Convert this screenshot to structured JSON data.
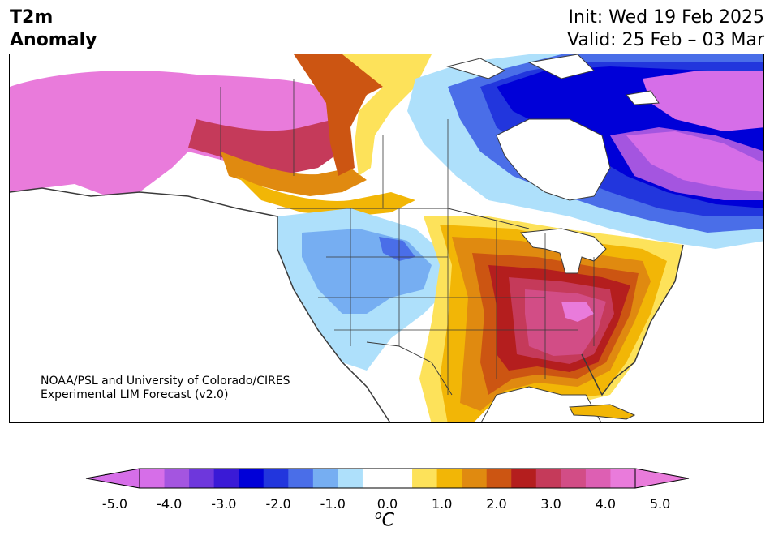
{
  "header": {
    "title_line1": "T2m",
    "title_line2": "Anomaly",
    "init": "Init: Wed 19 Feb 2025",
    "valid": "Valid: 25 Feb – 03 Mar"
  },
  "credit": {
    "line1": "NOAA/PSL and University of Colorado/CIRES",
    "line2": "Experimental LIM Forecast (v2.0)"
  },
  "colorbar": {
    "unit_base": "C",
    "unit_sup": "o",
    "ticks": [
      "-5.0",
      "-4.0",
      "-3.0",
      "-2.0",
      "-1.0",
      "0.0",
      "1.0",
      "2.0",
      "3.0",
      "4.0",
      "5.0"
    ],
    "colors": [
      "#d66ee8",
      "#a455e0",
      "#6e37dc",
      "#3a1ad6",
      "#0000d8",
      "#2236dd",
      "#4a6ee8",
      "#76aef2",
      "#aee0fb",
      "#ffffff",
      "#ffffff",
      "#fde25a",
      "#f2b606",
      "#e08a10",
      "#cc5512",
      "#b41e1e",
      "#c53a5a",
      "#d24d86",
      "#dd5fb3",
      "#e97bdb"
    ],
    "under_color": "#d66ee8",
    "over_color": "#e97bdb"
  },
  "map": {
    "region": "North America",
    "land_color": "#ffffff",
    "boundary_color": "#3a3a3a"
  }
}
